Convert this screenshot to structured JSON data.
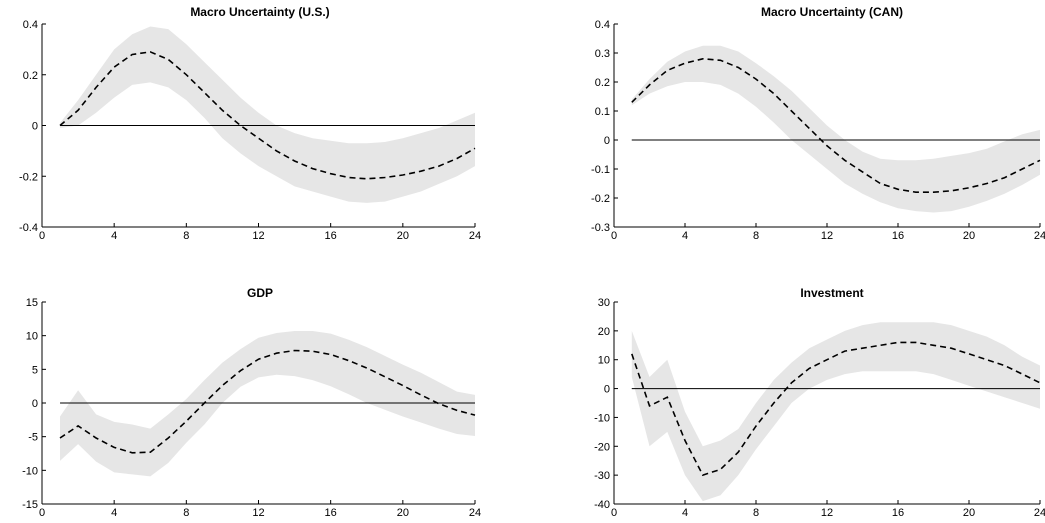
{
  "chart_data": [
    {
      "type": "line",
      "title": "Macro Uncertainty (U.S.)",
      "xlabel": "",
      "ylabel": "",
      "xlim": [
        0,
        24
      ],
      "ylim": [
        -0.4,
        0.4
      ],
      "xticks": [
        0,
        4,
        8,
        12,
        16,
        20,
        24
      ],
      "xtick_labels": [
        "0",
        "4",
        "8",
        "12",
        "16",
        "20",
        "24"
      ],
      "yticks": [
        -0.4,
        -0.2,
        0,
        0.2,
        0.4
      ],
      "ytick_labels": [
        "-0.4",
        "-0.2",
        "0",
        "0.2",
        "0.4"
      ],
      "grid": false,
      "zero_line": true,
      "series": [
        {
          "style": "dashed",
          "x": [
            1,
            2,
            3,
            4,
            5,
            6,
            7,
            8,
            9,
            10,
            11,
            12,
            13,
            14,
            15,
            16,
            17,
            18,
            19,
            20,
            21,
            22,
            23,
            24
          ],
          "values": [
            0.0,
            0.06,
            0.15,
            0.23,
            0.28,
            0.29,
            0.26,
            0.2,
            0.13,
            0.06,
            0.0,
            -0.05,
            -0.1,
            -0.14,
            -0.17,
            -0.19,
            -0.205,
            -0.21,
            -0.205,
            -0.195,
            -0.18,
            -0.16,
            -0.13,
            -0.09
          ],
          "band_lower": [
            -0.01,
            0.0,
            0.05,
            0.11,
            0.16,
            0.17,
            0.15,
            0.1,
            0.03,
            -0.05,
            -0.11,
            -0.16,
            -0.2,
            -0.24,
            -0.26,
            -0.28,
            -0.3,
            -0.305,
            -0.3,
            -0.28,
            -0.26,
            -0.23,
            -0.2,
            -0.16
          ],
          "band_upper": [
            0.01,
            0.1,
            0.2,
            0.3,
            0.36,
            0.39,
            0.38,
            0.32,
            0.25,
            0.18,
            0.11,
            0.05,
            0.0,
            -0.03,
            -0.05,
            -0.06,
            -0.07,
            -0.07,
            -0.065,
            -0.05,
            -0.03,
            -0.01,
            0.02,
            0.05
          ]
        }
      ]
    },
    {
      "type": "line",
      "title": "Macro Uncertainty (CAN)",
      "xlabel": "",
      "ylabel": "",
      "xlim": [
        0,
        24
      ],
      "ylim": [
        -0.3,
        0.4
      ],
      "xticks": [
        0,
        4,
        8,
        12,
        16,
        20,
        24
      ],
      "xtick_labels": [
        "0",
        "4",
        "8",
        "12",
        "16",
        "20",
        "24"
      ],
      "yticks": [
        -0.3,
        -0.2,
        -0.1,
        0,
        0.1,
        0.2,
        0.3,
        0.4
      ],
      "ytick_labels": [
        "-0.3",
        "-0.2",
        "-0.1",
        "0",
        "0.1",
        "0.2",
        "0.3",
        "0.4"
      ],
      "grid": false,
      "zero_line": true,
      "series": [
        {
          "style": "dashed",
          "x": [
            1,
            2,
            3,
            4,
            5,
            6,
            7,
            8,
            9,
            10,
            11,
            12,
            13,
            14,
            15,
            16,
            17,
            18,
            19,
            20,
            21,
            22,
            23,
            24
          ],
          "values": [
            0.13,
            0.19,
            0.24,
            0.265,
            0.28,
            0.275,
            0.25,
            0.21,
            0.16,
            0.1,
            0.04,
            -0.02,
            -0.07,
            -0.11,
            -0.15,
            -0.17,
            -0.18,
            -0.18,
            -0.175,
            -0.165,
            -0.15,
            -0.13,
            -0.1,
            -0.07
          ],
          "band_lower": [
            0.12,
            0.16,
            0.185,
            0.2,
            0.2,
            0.19,
            0.16,
            0.115,
            0.06,
            0.0,
            -0.05,
            -0.1,
            -0.15,
            -0.185,
            -0.215,
            -0.235,
            -0.245,
            -0.25,
            -0.245,
            -0.23,
            -0.21,
            -0.185,
            -0.155,
            -0.12
          ],
          "band_upper": [
            0.14,
            0.21,
            0.27,
            0.305,
            0.325,
            0.325,
            0.305,
            0.265,
            0.22,
            0.17,
            0.11,
            0.05,
            0.0,
            -0.04,
            -0.065,
            -0.07,
            -0.07,
            -0.065,
            -0.055,
            -0.045,
            -0.03,
            -0.005,
            0.02,
            0.035
          ]
        }
      ]
    },
    {
      "type": "line",
      "title": "GDP",
      "xlabel": "",
      "ylabel": "",
      "xlim": [
        0,
        24
      ],
      "ylim": [
        -15,
        15
      ],
      "xticks": [
        0,
        4,
        8,
        12,
        16,
        20,
        24
      ],
      "xtick_labels": [
        "0",
        "4",
        "8",
        "12",
        "16",
        "20",
        "24"
      ],
      "yticks": [
        -15,
        -10,
        -5,
        0,
        5,
        10,
        15
      ],
      "ytick_labels": [
        "-15",
        "-10",
        "-5",
        "0",
        "5",
        "10",
        "15"
      ],
      "grid": false,
      "zero_line": true,
      "series": [
        {
          "style": "dashed",
          "x": [
            1,
            2,
            3,
            4,
            5,
            6,
            7,
            8,
            9,
            10,
            11,
            12,
            13,
            14,
            15,
            16,
            17,
            18,
            19,
            20,
            21,
            22,
            23,
            24
          ],
          "values": [
            -5.2,
            -3.4,
            -5.2,
            -6.6,
            -7.4,
            -7.3,
            -5.2,
            -2.7,
            0.0,
            2.6,
            4.8,
            6.5,
            7.4,
            7.8,
            7.7,
            7.2,
            6.3,
            5.2,
            3.9,
            2.6,
            1.2,
            -0.1,
            -1.1,
            -1.8
          ],
          "band_lower": [
            -8.6,
            -6.1,
            -8.7,
            -10.3,
            -10.6,
            -10.9,
            -8.9,
            -5.9,
            -3.2,
            0.0,
            2.4,
            3.8,
            4.2,
            4.0,
            3.4,
            2.5,
            1.3,
            0.0,
            -1.0,
            -2.0,
            -2.9,
            -3.8,
            -4.6,
            -4.9
          ],
          "band_upper": [
            -2.0,
            1.9,
            -1.7,
            -2.8,
            -3.2,
            -3.8,
            -1.7,
            0.6,
            3.4,
            6.0,
            8.0,
            9.7,
            10.4,
            10.7,
            10.7,
            10.3,
            9.4,
            8.3,
            7.0,
            5.7,
            4.5,
            3.1,
            1.7,
            1.2
          ]
        }
      ]
    },
    {
      "type": "line",
      "title": "Investment",
      "xlabel": "",
      "ylabel": "",
      "xlim": [
        0,
        24
      ],
      "ylim": [
        -40,
        30
      ],
      "xticks": [
        0,
        4,
        8,
        12,
        16,
        20,
        24
      ],
      "xtick_labels": [
        "0",
        "4",
        "8",
        "12",
        "16",
        "20",
        "24"
      ],
      "yticks": [
        -40,
        -30,
        -20,
        -10,
        0,
        10,
        20,
        30
      ],
      "ytick_labels": [
        "-40",
        "-30",
        "-20",
        "-10",
        "0",
        "10",
        "20",
        "30"
      ],
      "grid": false,
      "zero_line": true,
      "series": [
        {
          "style": "dashed",
          "x": [
            1,
            2,
            3,
            4,
            5,
            6,
            7,
            8,
            9,
            10,
            11,
            12,
            13,
            14,
            15,
            16,
            17,
            18,
            19,
            20,
            21,
            22,
            23,
            24
          ],
          "values": [
            12.0,
            -6.0,
            -3.0,
            -18.0,
            -30.0,
            -28.0,
            -22.0,
            -13.0,
            -5.0,
            2.0,
            7.0,
            10.0,
            13.0,
            14.0,
            15.0,
            16.0,
            16.0,
            15.0,
            14.0,
            12.0,
            10.0,
            8.0,
            5.0,
            2.0
          ],
          "band_lower": [
            4.0,
            -20.0,
            -15.0,
            -30.0,
            -39.0,
            -37.0,
            -30.0,
            -21.0,
            -13.0,
            -5.0,
            0.0,
            3.0,
            5.0,
            6.0,
            6.0,
            6.0,
            6.0,
            5.0,
            3.0,
            1.0,
            -1.0,
            -3.0,
            -5.0,
            -7.0
          ],
          "band_upper": [
            20.0,
            4.0,
            10.0,
            -8.0,
            -20.0,
            -18.0,
            -14.0,
            -5.0,
            3.0,
            9.0,
            14.0,
            17.0,
            20.0,
            22.0,
            23.0,
            23.0,
            23.0,
            23.0,
            22.0,
            20.0,
            18.0,
            15.0,
            11.0,
            8.0
          ]
        }
      ]
    }
  ]
}
